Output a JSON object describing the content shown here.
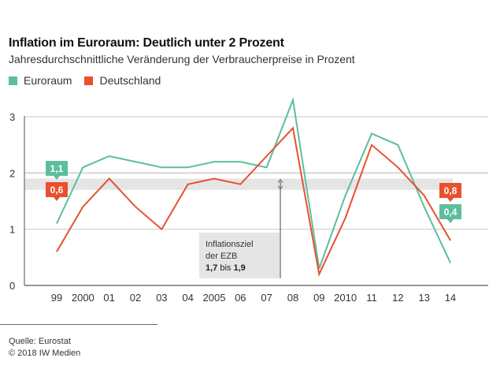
{
  "header": {
    "title": "Inflation im Euroraum: Deutlich unter 2 Prozent",
    "subtitle": "Jahresdurchschnittliche Veränderung der Verbraucherpreise in Prozent"
  },
  "legend": [
    {
      "label": "Euroraum",
      "color": "#5bbf9c"
    },
    {
      "label": "Deutschland",
      "color": "#e8502e"
    }
  ],
  "footer": {
    "source": "Quelle: Eurostat",
    "copyright": "© 2018 IW Medien"
  },
  "chart_data": {
    "type": "line",
    "title": "Inflation im Euroraum: Deutlich unter 2 Prozent",
    "subtitle": "Jahresdurchschnittliche Veränderung der Verbraucherpreise in Prozent",
    "xlabel": "",
    "ylabel": "",
    "categories": [
      "99",
      "2000",
      "01",
      "02",
      "03",
      "04",
      "2005",
      "06",
      "07",
      "08",
      "09",
      "2010",
      "11",
      "12",
      "13",
      "14"
    ],
    "ylim": [
      0,
      3.3
    ],
    "yticks": [
      "0",
      "1",
      "2",
      "3"
    ],
    "grid": true,
    "legend_position": "top-left",
    "series": [
      {
        "name": "Euroraum",
        "color": "#5bbf9c",
        "values": [
          1.1,
          2.1,
          2.3,
          2.2,
          2.1,
          2.1,
          2.2,
          2.2,
          2.1,
          3.3,
          0.3,
          1.6,
          2.7,
          2.5,
          1.4,
          0.4
        ],
        "start_label": "1,1",
        "end_label": "0,4"
      },
      {
        "name": "Deutschland",
        "color": "#e8502e",
        "values": [
          0.6,
          1.4,
          1.9,
          1.4,
          1.0,
          1.8,
          1.9,
          1.8,
          2.3,
          2.8,
          0.2,
          1.2,
          2.5,
          2.1,
          1.6,
          0.8
        ],
        "start_label": "0,6",
        "end_label": "0,8"
      }
    ],
    "target_band": {
      "from": 1.7,
      "to": 1.9,
      "color": "#e5e5e5"
    },
    "annotation": {
      "line1": "Inflationsziel",
      "line2": "der EZB",
      "from_value": "1,7",
      "connector": "bis",
      "to_value": "1,9"
    }
  }
}
